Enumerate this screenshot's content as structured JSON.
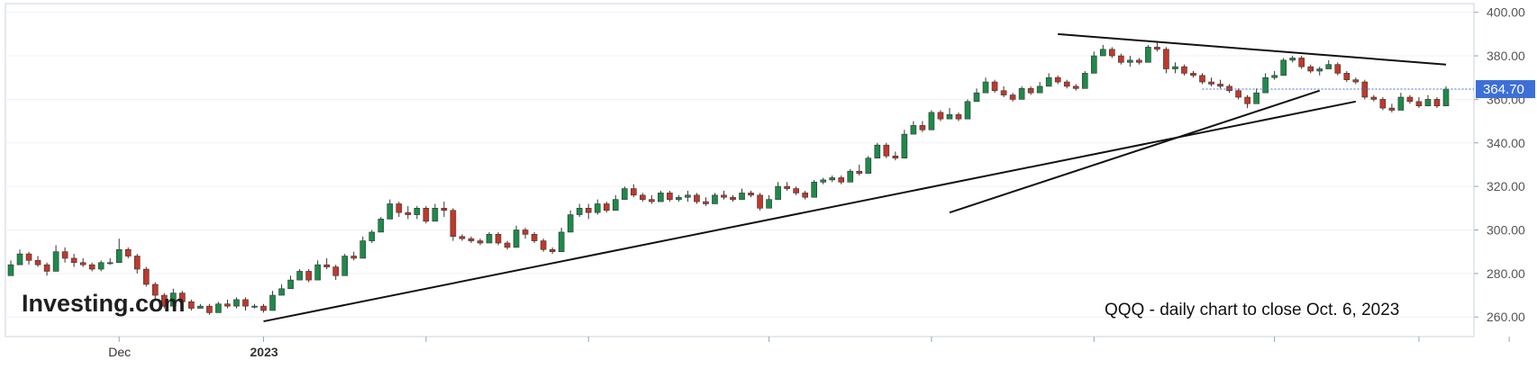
{
  "chart_data": {
    "type": "candlestick",
    "caption": "QQQ - daily chart to close Oct. 6, 2023",
    "watermark": "Investing.com",
    "y_ticks": [
      "400.00",
      "380.00",
      "360.00",
      "340.00",
      "320.00",
      "300.00",
      "280.00",
      "260.00"
    ],
    "ylim": [
      251,
      404
    ],
    "last_price_label": "364.70",
    "last_price": 364.7,
    "x_ticks": [
      "Dec",
      "2023"
    ],
    "up_color": "#1e8a4a",
    "down_color": "#c0392b",
    "price_line_color": "#3d6fd8",
    "series": [
      {
        "name": "candles",
        "ohlc": [
          [
            279,
            280,
            286,
            284
          ],
          [
            284,
            285,
            291,
            289
          ],
          [
            289,
            284,
            290,
            286
          ],
          [
            286,
            283,
            288,
            284
          ],
          [
            284,
            279,
            285,
            281
          ],
          [
            281,
            286,
            293,
            290
          ],
          [
            290,
            285,
            292,
            287
          ],
          [
            287,
            283,
            289,
            285
          ],
          [
            285,
            283,
            287,
            284
          ],
          [
            284,
            281,
            285,
            282
          ],
          [
            282,
            281,
            286,
            285
          ],
          [
            285,
            284,
            287,
            285
          ],
          [
            285,
            286,
            296,
            291
          ],
          [
            291,
            287,
            292,
            288
          ],
          [
            288,
            280,
            289,
            282
          ],
          [
            282,
            274,
            283,
            275
          ],
          [
            275,
            268,
            276,
            270
          ],
          [
            270,
            264,
            271,
            265
          ],
          [
            265,
            266,
            273,
            271
          ],
          [
            271,
            266,
            272,
            267
          ],
          [
            267,
            263,
            268,
            264
          ],
          [
            264,
            264,
            266,
            265
          ],
          [
            265,
            261,
            266,
            262
          ],
          [
            262,
            262,
            267,
            266
          ],
          [
            266,
            264,
            268,
            265
          ],
          [
            265,
            264,
            269,
            268
          ],
          [
            268,
            263,
            269,
            265
          ],
          [
            265,
            264,
            266,
            265
          ],
          [
            265,
            262,
            266,
            263
          ],
          [
            263,
            265,
            272,
            270
          ],
          [
            270,
            272,
            275,
            273
          ],
          [
            273,
            273,
            279,
            277
          ],
          [
            277,
            278,
            282,
            281
          ],
          [
            281,
            276,
            282,
            277
          ],
          [
            277,
            281,
            286,
            284
          ],
          [
            284,
            282,
            287,
            283
          ],
          [
            283,
            277,
            284,
            279
          ],
          [
            279,
            285,
            289,
            288
          ],
          [
            288,
            286,
            290,
            287
          ],
          [
            287,
            291,
            297,
            295
          ],
          [
            295,
            294,
            300,
            299
          ],
          [
            299,
            303,
            306,
            305
          ],
          [
            305,
            309,
            314,
            312
          ],
          [
            312,
            306,
            313,
            308
          ],
          [
            308,
            305,
            311,
            307
          ],
          [
            307,
            305,
            311,
            310
          ],
          [
            310,
            303,
            311,
            304
          ],
          [
            304,
            307,
            312,
            310
          ],
          [
            310,
            306,
            313,
            309
          ],
          [
            309,
            295,
            310,
            297
          ],
          [
            297,
            295,
            298,
            296
          ],
          [
            296,
            294,
            297,
            295
          ],
          [
            295,
            293,
            296,
            294
          ],
          [
            294,
            296,
            299,
            298
          ],
          [
            298,
            293,
            299,
            294
          ],
          [
            294,
            291,
            295,
            292
          ],
          [
            292,
            295,
            302,
            300
          ],
          [
            300,
            296,
            301,
            298
          ],
          [
            298,
            294,
            299,
            295
          ],
          [
            295,
            290,
            296,
            291
          ],
          [
            291,
            289,
            292,
            290
          ],
          [
            290,
            294,
            301,
            299
          ],
          [
            299,
            304,
            309,
            307
          ],
          [
            307,
            306,
            312,
            310
          ],
          [
            310,
            305,
            312,
            308
          ],
          [
            308,
            307,
            314,
            312
          ],
          [
            312,
            308,
            313,
            309
          ],
          [
            309,
            311,
            316,
            314
          ],
          [
            314,
            315,
            320,
            319
          ],
          [
            319,
            315,
            321,
            316
          ],
          [
            316,
            313,
            317,
            314
          ],
          [
            314,
            312,
            316,
            313
          ],
          [
            313,
            314,
            318,
            317
          ],
          [
            317,
            313,
            318,
            314
          ],
          [
            314,
            313,
            316,
            315
          ],
          [
            315,
            313,
            318,
            316
          ],
          [
            316,
            312,
            317,
            313
          ],
          [
            313,
            311,
            315,
            312
          ],
          [
            312,
            313,
            317,
            316
          ],
          [
            316,
            314,
            318,
            315
          ],
          [
            315,
            313,
            316,
            314
          ],
          [
            314,
            315,
            319,
            317
          ],
          [
            317,
            315,
            318,
            316
          ],
          [
            316,
            309,
            317,
            310
          ],
          [
            310,
            310,
            316,
            314
          ],
          [
            314,
            317,
            322,
            320
          ],
          [
            320,
            318,
            322,
            319
          ],
          [
            319,
            316,
            320,
            317
          ],
          [
            317,
            314,
            318,
            315
          ],
          [
            315,
            318,
            323,
            322
          ],
          [
            322,
            321,
            324,
            323
          ],
          [
            323,
            322,
            325,
            324
          ],
          [
            324,
            321,
            325,
            322
          ],
          [
            322,
            325,
            328,
            327
          ],
          [
            327,
            325,
            330,
            326
          ],
          [
            326,
            331,
            334,
            333
          ],
          [
            333,
            336,
            340,
            339
          ],
          [
            339,
            333,
            340,
            334
          ],
          [
            334,
            332,
            336,
            333
          ],
          [
            333,
            338,
            346,
            344
          ],
          [
            344,
            347,
            350,
            348
          ],
          [
            348,
            345,
            350,
            346
          ],
          [
            346,
            350,
            355,
            354
          ],
          [
            354,
            350,
            355,
            351
          ],
          [
            351,
            352,
            356,
            353
          ],
          [
            353,
            350,
            354,
            351
          ],
          [
            351,
            356,
            360,
            359
          ],
          [
            359,
            361,
            365,
            363
          ],
          [
            363,
            366,
            370,
            368
          ],
          [
            368,
            363,
            369,
            364
          ],
          [
            364,
            361,
            366,
            362
          ],
          [
            362,
            359,
            363,
            360
          ],
          [
            360,
            361,
            366,
            365
          ],
          [
            365,
            362,
            366,
            363
          ],
          [
            363,
            364,
            368,
            366
          ],
          [
            366,
            368,
            372,
            370
          ],
          [
            370,
            367,
            371,
            368
          ],
          [
            368,
            365,
            369,
            366
          ],
          [
            366,
            364,
            367,
            365
          ],
          [
            365,
            367,
            373,
            372
          ],
          [
            372,
            377,
            382,
            380
          ],
          [
            380,
            382,
            385,
            383
          ],
          [
            383,
            379,
            384,
            380
          ],
          [
            380,
            376,
            381,
            377
          ],
          [
            377,
            375,
            380,
            378
          ],
          [
            378,
            376,
            379,
            377
          ],
          [
            377,
            379,
            385,
            384
          ],
          [
            384,
            382,
            386,
            383
          ],
          [
            383,
            372,
            384,
            374
          ],
          [
            374,
            372,
            377,
            375
          ],
          [
            375,
            371,
            376,
            372
          ],
          [
            372,
            370,
            373,
            371
          ],
          [
            371,
            367,
            372,
            368
          ],
          [
            368,
            366,
            370,
            367
          ],
          [
            367,
            365,
            369,
            366
          ],
          [
            366,
            363,
            367,
            364
          ],
          [
            364,
            360,
            365,
            361
          ],
          [
            361,
            356,
            362,
            358
          ],
          [
            358,
            360,
            365,
            363
          ],
          [
            363,
            366,
            372,
            370
          ],
          [
            370,
            369,
            373,
            371
          ],
          [
            371,
            374,
            379,
            378
          ],
          [
            378,
            377,
            380,
            379
          ],
          [
            379,
            374,
            380,
            375
          ],
          [
            375,
            372,
            376,
            373
          ],
          [
            373,
            371,
            375,
            374
          ],
          [
            374,
            374,
            378,
            376
          ],
          [
            376,
            371,
            377,
            372
          ],
          [
            372,
            368,
            373,
            369
          ],
          [
            369,
            367,
            370,
            368
          ],
          [
            368,
            360,
            369,
            361
          ],
          [
            361,
            359,
            362,
            360
          ],
          [
            360,
            355,
            361,
            356
          ],
          [
            356,
            354,
            358,
            355
          ],
          [
            355,
            357,
            363,
            361
          ],
          [
            361,
            358,
            362,
            359
          ],
          [
            359,
            356,
            361,
            357
          ],
          [
            357,
            358,
            362,
            360
          ],
          [
            360,
            356,
            361,
            357
          ],
          [
            357,
            364,
            366,
            364.7
          ]
        ]
      }
    ]
  }
}
